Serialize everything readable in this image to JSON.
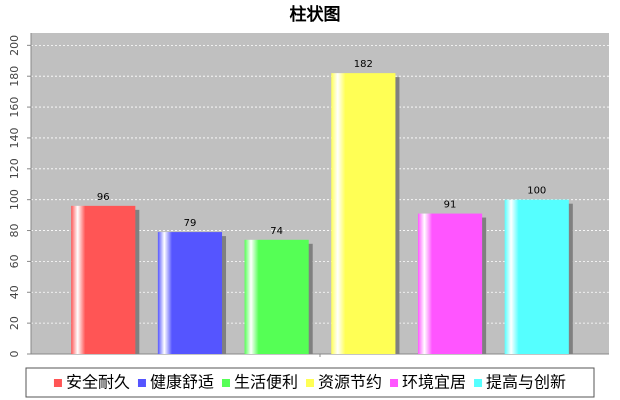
{
  "chart_data": {
    "type": "bar",
    "title": "柱状图",
    "categories": [
      null
    ],
    "series": [
      {
        "name": "安全耐久",
        "color": "#ff5555",
        "values": [
          96
        ]
      },
      {
        "name": "健康舒适",
        "color": "#5555ff",
        "values": [
          79
        ]
      },
      {
        "name": "生活便利",
        "color": "#55ff55",
        "values": [
          74
        ]
      },
      {
        "name": "资源节约",
        "color": "#ffff55",
        "values": [
          182
        ]
      },
      {
        "name": "环境宜居",
        "color": "#ff55ff",
        "values": [
          91
        ]
      },
      {
        "name": "提高与创新",
        "color": "#55ffff",
        "values": [
          100
        ]
      }
    ],
    "ylim": [
      0,
      208
    ],
    "yticks": [
      0,
      20,
      40,
      60,
      80,
      100,
      120,
      140,
      160,
      180,
      200
    ],
    "grid": true,
    "legend": "bottom"
  }
}
